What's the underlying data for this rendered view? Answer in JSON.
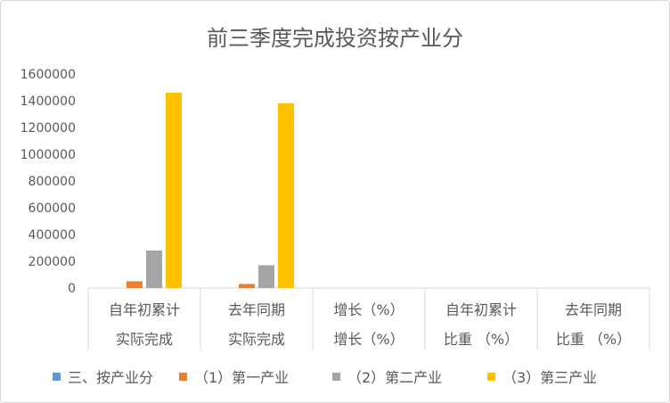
{
  "chart_data": {
    "type": "bar",
    "title": "前三季度完成投资按产业分",
    "xlabel": "",
    "ylabel": "",
    "ylim": [
      0,
      1600000
    ],
    "yticks": [
      0,
      200000,
      400000,
      600000,
      800000,
      1000000,
      1200000,
      1400000,
      1600000
    ],
    "ytick_labels": [
      "0",
      "200000",
      "400000",
      "600000",
      "800000",
      "1000000",
      "1200000",
      "1400000",
      "1600000"
    ],
    "grid": false,
    "legend_position": "bottom",
    "categories": [
      [
        "自年初累计",
        "实际完成"
      ],
      [
        "去年同期",
        "实际完成"
      ],
      [
        "增长（%）",
        "增长（%）"
      ],
      [
        "自年初累计",
        "比重 （%）"
      ],
      [
        "去年同期",
        "比重 （%）"
      ]
    ],
    "series": [
      {
        "name": "三、按产业分",
        "color": "#5b9bd5",
        "values": [
          0,
          0,
          0,
          0,
          0
        ]
      },
      {
        "name": "（1）第一产业",
        "color": "#ed7d31",
        "values": [
          50000,
          30000,
          0,
          0,
          0
        ]
      },
      {
        "name": "（2）第二产业",
        "color": "#a5a5a5",
        "values": [
          280000,
          170000,
          0,
          0,
          0
        ]
      },
      {
        "name": "（3）第三产业",
        "color": "#ffc000",
        "values": [
          1460000,
          1380000,
          0,
          0,
          0
        ]
      }
    ]
  }
}
